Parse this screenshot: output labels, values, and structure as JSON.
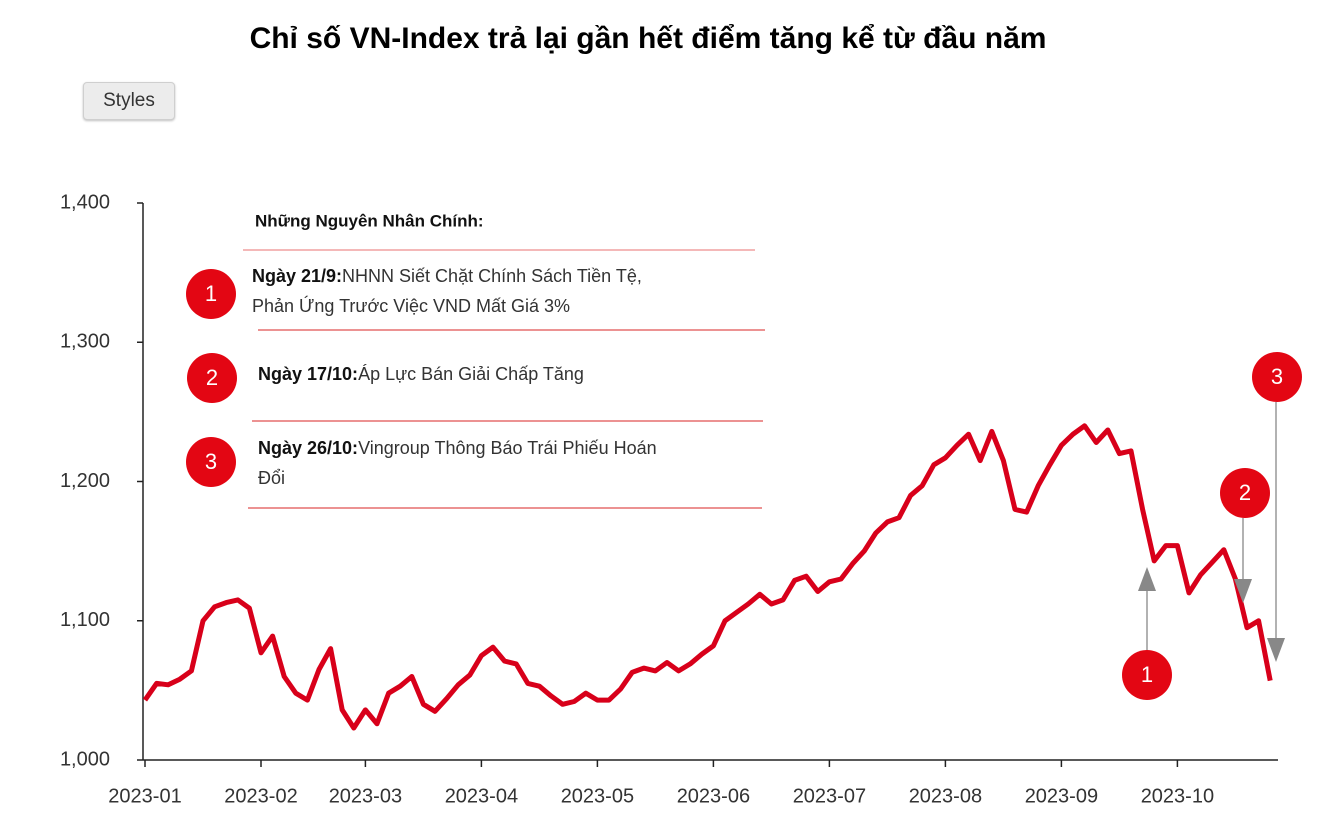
{
  "toolbar": {
    "button": "Styles"
  },
  "chart_data": {
    "type": "line",
    "title": "Chỉ số VN-Index trả lại gần hết điểm tăng kể từ đầu năm",
    "color": "#d8001a",
    "categories": [
      "2023-01",
      null,
      null,
      null,
      null,
      null,
      null,
      null,
      null,
      null,
      "2023-02",
      null,
      null,
      null,
      null,
      null,
      null,
      null,
      null,
      "2023-03",
      null,
      null,
      null,
      null,
      null,
      null,
      null,
      null,
      null,
      "2023-04",
      null,
      null,
      null,
      null,
      null,
      null,
      null,
      null,
      null,
      "2023-05",
      null,
      null,
      null,
      null,
      null,
      null,
      null,
      null,
      null,
      "2023-06",
      null,
      null,
      null,
      null,
      null,
      null,
      null,
      null,
      null,
      "2023-07",
      null,
      null,
      null,
      null,
      null,
      null,
      null,
      null,
      null,
      "2023-08",
      null,
      null,
      null,
      null,
      null,
      null,
      null,
      null,
      null,
      "2023-09",
      null,
      null,
      null,
      null,
      null,
      null,
      null,
      null,
      null,
      "2023-10",
      null,
      null,
      null,
      null,
      null,
      null,
      null,
      null
    ],
    "values": [
      1043,
      1055,
      1054,
      1058,
      1064,
      1100,
      1110,
      1113,
      1115,
      1109,
      1077,
      1089,
      1060,
      1048,
      1043,
      1065,
      1080,
      1036,
      1023,
      1036,
      1026,
      1048,
      1053,
      1060,
      1040,
      1035,
      1044,
      1054,
      1061,
      1075,
      1081,
      1071,
      1069,
      1055,
      1053,
      1046,
      1040,
      1042,
      1048,
      1043,
      1043,
      1051,
      1063,
      1066,
      1064,
      1070,
      1064,
      1069,
      1076,
      1082,
      1100,
      1106,
      1112,
      1119,
      1112,
      1115,
      1129,
      1132,
      1121,
      1128,
      1130,
      1141,
      1150,
      1163,
      1171,
      1174,
      1190,
      1197,
      1212,
      1217,
      1226,
      1234,
      1215,
      1236,
      1215,
      1180,
      1178,
      1197,
      1212,
      1226,
      1234,
      1240,
      1228,
      1237,
      1220,
      1222,
      1180,
      1143,
      1154,
      1154,
      1120,
      1133,
      1142,
      1151,
      1130,
      1095,
      1100,
      1057
    ],
    "ylim": [
      1000,
      1400
    ],
    "yticks": [
      {
        "value": 1000,
        "label": "1,000"
      },
      {
        "value": 1100,
        "label": "1,100"
      },
      {
        "value": 1200,
        "label": "1,200"
      },
      {
        "value": 1300,
        "label": "1,300"
      },
      {
        "value": 1400,
        "label": "1,400"
      }
    ],
    "grid": false,
    "annotations": {
      "title": "Những Nguyên Nhân Chính:",
      "items": [
        {
          "number": "1",
          "date": "Ngày 21/9:",
          "lines": [
            "NHNN Siết Chặt Chính Sách Tiền Tệ,",
            "Phản Ứng Trước Việc VND Mất Giá 3%"
          ]
        },
        {
          "number": "2",
          "date": "Ngày 17/10:",
          "lines": [
            "Áp Lực Bán Giải Chấp Tăng"
          ]
        },
        {
          "number": "3",
          "date": "Ngày 26/10:",
          "lines": [
            "Vingroup Thông Báo Trái Phiếu Hoán",
            "Đổi"
          ]
        }
      ]
    }
  }
}
